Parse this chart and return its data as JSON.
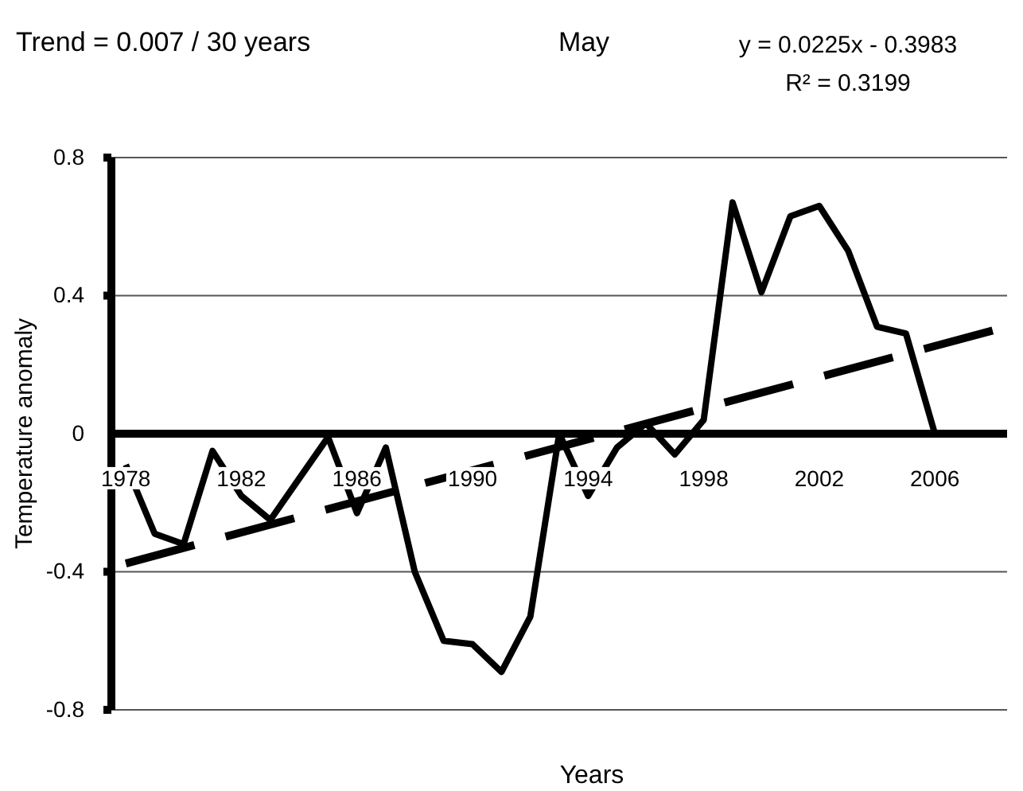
{
  "chart_data": {
    "type": "line",
    "title": "May",
    "xlabel": "Years",
    "ylabel": "Temperature anomaly",
    "annotations": [
      "Trend = 0.007 / 30 years",
      "y = 0.0225x - 0.3983",
      "R² = 0.3199"
    ],
    "x": [
      1978,
      1979,
      1980,
      1981,
      1982,
      1983,
      1984,
      1985,
      1986,
      1987,
      1988,
      1989,
      1990,
      1991,
      1992,
      1993,
      1994,
      1995,
      1996,
      1997,
      1998,
      1999,
      2000,
      2001,
      2002,
      2003,
      2004,
      2005,
      2006
    ],
    "series": [
      {
        "color": "#000000",
        "values": [
          -0.09,
          -0.29,
          -0.32,
          -0.05,
          -0.18,
          -0.25,
          -0.13,
          -0.01,
          -0.23,
          -0.04,
          -0.4,
          -0.6,
          -0.61,
          -0.69,
          -0.53,
          0.0,
          -0.18,
          -0.04,
          0.03,
          -0.06,
          0.04,
          0.67,
          0.41,
          0.63,
          0.66,
          0.53,
          0.31,
          0.29,
          0.0
        ]
      },
      {
        "type": "line",
        "x": [
          1978,
          2008
        ],
        "values": [
          -0.376,
          0.299
        ],
        "color": "#000000",
        "line_style": "dashed"
      }
    ],
    "xlim": [
      1977.5,
      2008.5
    ],
    "ylim": [
      -0.8,
      0.8
    ],
    "xticks": [
      1978,
      1982,
      1986,
      1990,
      1994,
      1998,
      2002,
      2006
    ],
    "yticks": [
      -0.8,
      -0.4,
      0,
      0.4,
      0.8
    ],
    "grid": "y"
  }
}
